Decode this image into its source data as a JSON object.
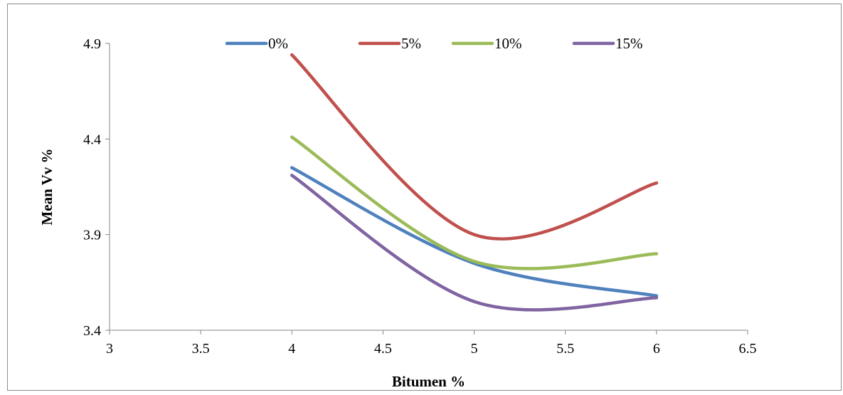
{
  "chart_data": {
    "type": "line",
    "smooth": true,
    "title": "",
    "xlabel": "Bitumen %",
    "ylabel": "Mean Vv %",
    "xlim": [
      3,
      6.5
    ],
    "ylim": [
      3.4,
      4.9
    ],
    "xticks": [
      "3",
      "3.5",
      "4",
      "4.5",
      "5",
      "5.5",
      "6",
      "6.5"
    ],
    "yticks": [
      "3.4",
      "3.9",
      "4.4",
      "4.9"
    ],
    "grid": false,
    "legend_position": "top",
    "x": [
      4,
      5,
      6
    ],
    "series": [
      {
        "name": "0%",
        "color": "#4f81bd",
        "values": [
          4.25,
          3.75,
          3.58
        ]
      },
      {
        "name": "5%",
        "color": "#c0504d",
        "values": [
          4.84,
          3.9,
          4.17
        ]
      },
      {
        "name": "10%",
        "color": "#9bbb59",
        "values": [
          4.41,
          3.76,
          3.8
        ]
      },
      {
        "name": "15%",
        "color": "#8064a2",
        "values": [
          4.21,
          3.55,
          3.57
        ]
      }
    ]
  }
}
